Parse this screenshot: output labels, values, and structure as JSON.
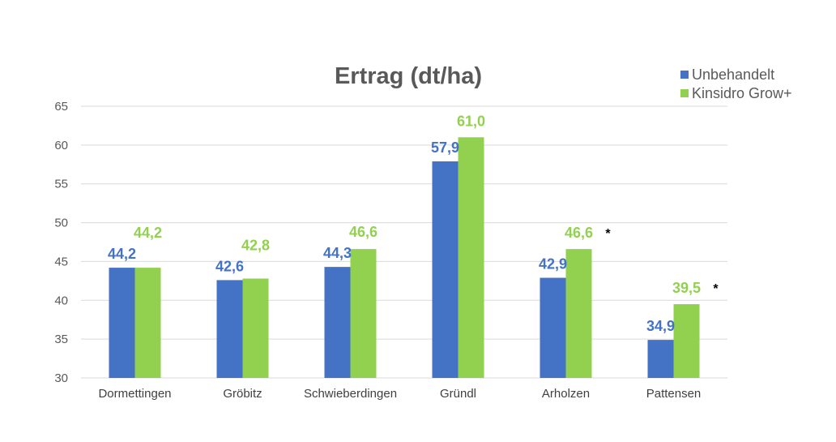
{
  "chart_data": {
    "type": "bar",
    "title": "Ertrag (dt/ha)",
    "xlabel": "",
    "ylabel": "",
    "ylim": [
      30,
      65
    ],
    "yticks": [
      "30",
      "35",
      "40",
      "45",
      "50",
      "55",
      "60",
      "65"
    ],
    "grid": true,
    "legend_position": "top-right",
    "categories": [
      "Dormettingen",
      "Gröbitz",
      "Schwieberdingen",
      "Gründl",
      "Arholzen",
      "Pattensen"
    ],
    "series": [
      {
        "name": "Unbehandelt",
        "color": "#4472C4",
        "values": [
          44.2,
          42.6,
          44.3,
          57.9,
          42.9,
          34.9
        ],
        "labels": [
          "44,2",
          "42,6",
          "44,3",
          "57,9",
          "42,9",
          "34,9"
        ]
      },
      {
        "name": "Kinsidro Grow+",
        "color": "#92D050",
        "values": [
          44.2,
          42.8,
          46.6,
          61.0,
          46.6,
          39.5
        ],
        "labels": [
          "44,2",
          "42,8",
          "46,6",
          "61,0",
          "46,6",
          "39,5"
        ]
      }
    ],
    "annotations": [
      "",
      "",
      "",
      "",
      "*",
      "*"
    ]
  }
}
